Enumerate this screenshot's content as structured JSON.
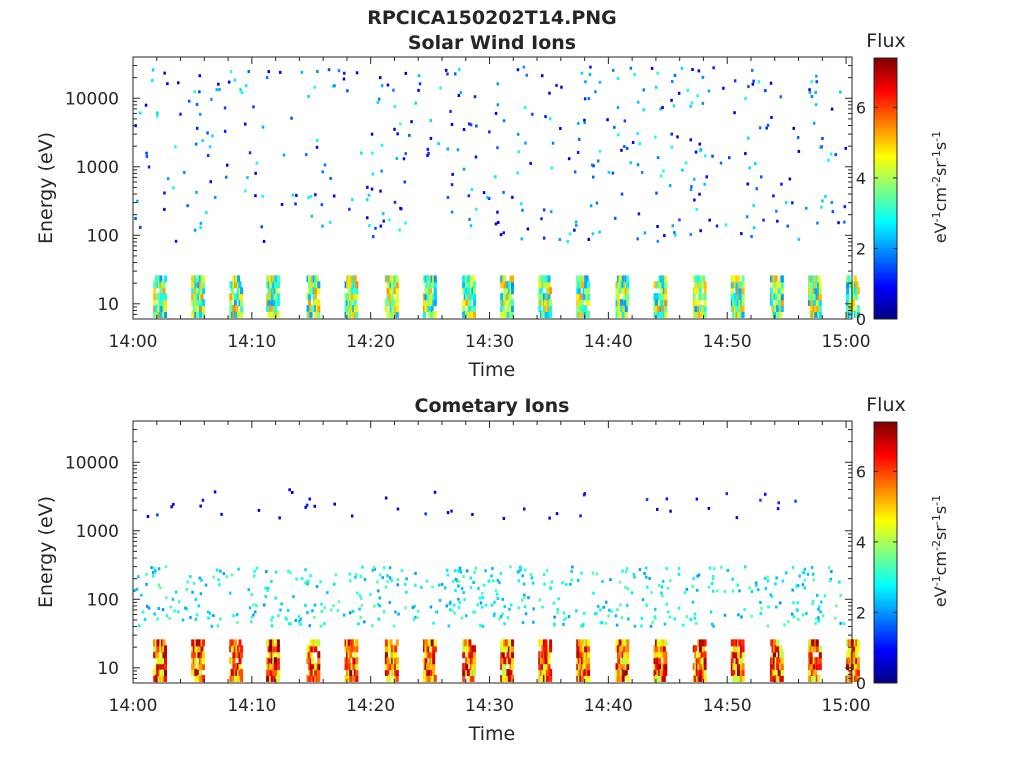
{
  "page": {
    "title": "RPCICA150202T14.PNG"
  },
  "panels": [
    {
      "title": "Solar Wind Ions",
      "xlabel": "Time",
      "ylabel": "Energy (eV)"
    },
    {
      "title": "Cometary Ions",
      "xlabel": "Time",
      "ylabel": "Energy (eV)"
    }
  ],
  "colorbar": {
    "title": "Flux",
    "range": [
      0,
      7.4
    ],
    "ticks": [
      "0",
      "2",
      "4",
      "6"
    ],
    "colormap": "jet",
    "unit": {
      "base": "eV",
      "parts": [
        [
          "eV",
          "-1"
        ],
        [
          "cm",
          "-2"
        ],
        [
          "sr",
          "-1"
        ],
        [
          "s",
          "-1"
        ]
      ]
    }
  },
  "chart_data": [
    {
      "type": "heatmap",
      "title": "Solar Wind Ions",
      "xlabel": "Time",
      "ylabel": "Energy (eV)",
      "yscale": "log",
      "ylim": [
        6,
        40000
      ],
      "x_ticks": [
        "14:00",
        "14:10",
        "14:20",
        "14:30",
        "14:40",
        "14:50",
        "15:00"
      ],
      "y_ticks": [
        "10",
        "100",
        "1000",
        "10000"
      ],
      "y_tick_values": [
        10,
        100,
        1000,
        10000
      ],
      "flux_range": [
        0,
        7.4
      ],
      "description_bands": [
        {
          "energy": [
            6,
            28
          ],
          "flux": [
            2,
            5.5
          ],
          "pattern": "periodic ~3 min bursts"
        },
        {
          "energy": [
            80,
            30000
          ],
          "flux": [
            0.5,
            3
          ],
          "pattern": "sparse scattered counts"
        }
      ],
      "sweeps_min": [
        1.7,
        4.9,
        8.1,
        11.2,
        14.6,
        17.8,
        21.2,
        24.4,
        27.7,
        30.9,
        34.1,
        37.3,
        40.6,
        43.8,
        47.1,
        50.3,
        53.6,
        56.8,
        60.0
      ]
    },
    {
      "type": "heatmap",
      "title": "Cometary Ions",
      "xlabel": "Time",
      "ylabel": "Energy (eV)",
      "yscale": "log",
      "ylim": [
        6,
        40000
      ],
      "x_ticks": [
        "14:00",
        "14:10",
        "14:20",
        "14:30",
        "14:40",
        "14:50",
        "15:00"
      ],
      "y_ticks": [
        "10",
        "100",
        "1000",
        "10000"
      ],
      "y_tick_values": [
        10,
        100,
        1000,
        10000
      ],
      "flux_range": [
        0,
        7.4
      ],
      "description_bands": [
        {
          "energy": [
            6,
            28
          ],
          "flux": [
            4,
            7.3
          ],
          "pattern": "periodic ~3 min bursts"
        },
        {
          "energy": [
            40,
            300
          ],
          "flux": [
            2,
            3.5
          ],
          "pattern": "dense scattered counts"
        },
        {
          "energy": [
            1500,
            4000
          ],
          "flux": [
            0.5,
            1.5
          ],
          "pattern": "sparse dots"
        }
      ],
      "sweeps_min": [
        1.7,
        4.9,
        8.1,
        11.2,
        14.6,
        17.8,
        21.2,
        24.4,
        27.7,
        30.9,
        34.1,
        37.3,
        40.6,
        43.8,
        47.1,
        50.3,
        53.6,
        56.8,
        60.0
      ]
    }
  ]
}
